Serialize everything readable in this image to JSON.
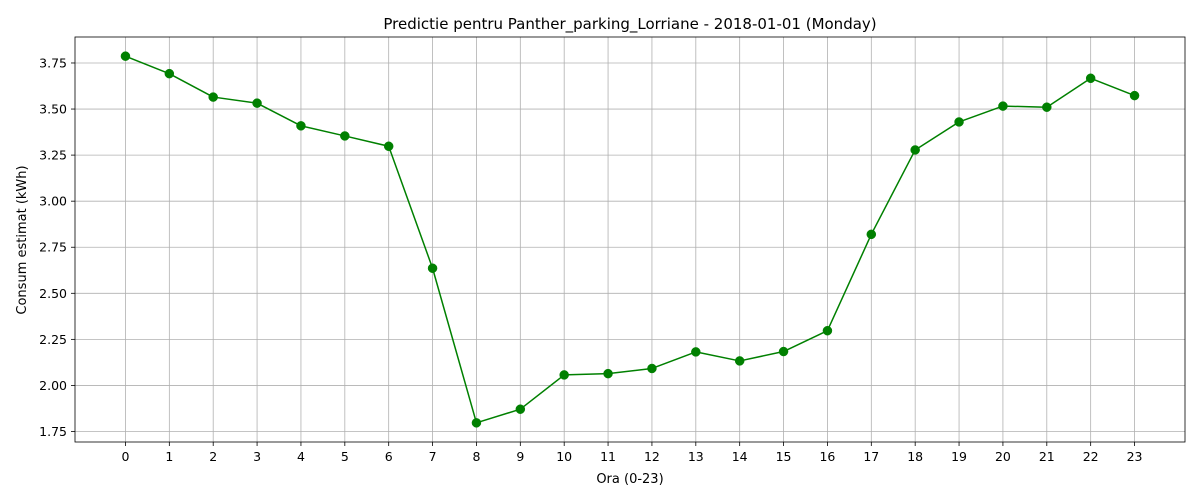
{
  "chart_data": {
    "type": "line",
    "title": "Predictie pentru Panther_parking_Lorriane - 2018-01-01 (Monday)",
    "xlabel": "Ora (0-23)",
    "ylabel": "Consum estimat (kWh)",
    "x": [
      0,
      1,
      2,
      3,
      4,
      5,
      6,
      7,
      8,
      9,
      10,
      11,
      12,
      13,
      14,
      15,
      16,
      17,
      18,
      19,
      20,
      21,
      22,
      23
    ],
    "x_tick_labels": [
      "0",
      "1",
      "2",
      "3",
      "4",
      "5",
      "6",
      "7",
      "8",
      "9",
      "10",
      "11",
      "12",
      "13",
      "14",
      "15",
      "16",
      "17",
      "18",
      "19",
      "20",
      "21",
      "22",
      "23"
    ],
    "series": [
      {
        "values": [
          3.787,
          3.692,
          3.565,
          3.532,
          3.409,
          3.354,
          3.298,
          2.636,
          1.797,
          1.871,
          2.057,
          2.064,
          2.092,
          2.182,
          2.133,
          2.184,
          2.297,
          2.82,
          3.278,
          3.43,
          3.516,
          3.51,
          3.667,
          3.573
        ],
        "color": "#008000"
      }
    ],
    "xlim": [
      -1.15,
      24.15
    ],
    "ylim": [
      1.693,
      3.891
    ],
    "y_ticks": [
      1.75,
      2.0,
      2.25,
      2.5,
      2.75,
      3.0,
      3.25,
      3.5,
      3.75
    ],
    "y_tick_labels": [
      "1.75",
      "2.00",
      "2.25",
      "2.50",
      "2.75",
      "3.00",
      "3.25",
      "3.50",
      "3.75"
    ],
    "grid": true,
    "marker": "circle"
  }
}
